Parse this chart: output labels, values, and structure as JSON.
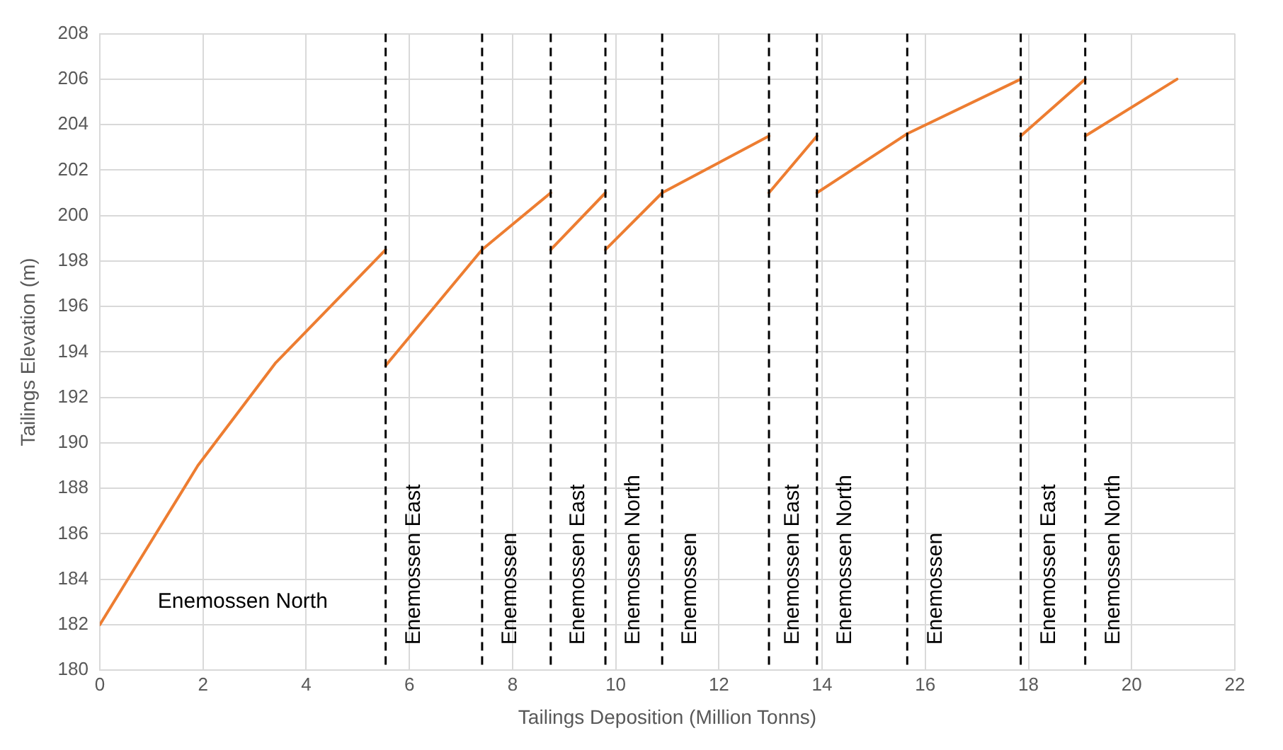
{
  "chart_data": {
    "type": "line",
    "xlabel": "Tailings Deposition (Million Tonns)",
    "ylabel": "Tailings Elevation (m)",
    "series": [
      {
        "color": "#ed7d31",
        "x": [
          0,
          1.9,
          3.4,
          5.54
        ],
        "values": [
          182,
          189,
          193.5,
          198.5
        ]
      },
      {
        "color": "#ed7d31",
        "x": [
          5.54,
          7.41,
          8.74
        ],
        "values": [
          193.4,
          198.5,
          201
        ]
      },
      {
        "color": "#ed7d31",
        "x": [
          8.74,
          9.8
        ],
        "values": [
          198.5,
          201
        ]
      },
      {
        "color": "#ed7d31",
        "x": [
          9.8,
          10.9,
          12.97
        ],
        "values": [
          198.5,
          201,
          203.5
        ]
      },
      {
        "color": "#ed7d31",
        "x": [
          12.97,
          13.9
        ],
        "values": [
          201,
          203.5
        ]
      },
      {
        "color": "#ed7d31",
        "x": [
          13.9,
          15.65,
          17.85
        ],
        "values": [
          201,
          203.6,
          206
        ]
      },
      {
        "color": "#ed7d31",
        "x": [
          17.85,
          19.1
        ],
        "values": [
          203.5,
          206
        ]
      },
      {
        "color": "#ed7d31",
        "x": [
          19.1,
          20.88
        ],
        "values": [
          203.5,
          206
        ]
      }
    ],
    "xlim": [
      0,
      22
    ],
    "xticks": [
      0,
      2,
      4,
      6,
      8,
      10,
      12,
      14,
      16,
      18,
      20,
      22
    ],
    "ylim": [
      180,
      208
    ],
    "yticks": [
      180,
      182,
      184,
      186,
      188,
      190,
      192,
      194,
      196,
      198,
      200,
      202,
      204,
      206,
      208
    ],
    "grid": true,
    "legend": false,
    "marker": "none",
    "line_style": "solid",
    "ref_lines": [
      {
        "axis": "x",
        "value": 5.54,
        "color": "#000000",
        "line_style": "dashed"
      },
      {
        "axis": "x",
        "value": 7.41,
        "color": "#000000",
        "line_style": "dashed"
      },
      {
        "axis": "x",
        "value": 8.74,
        "color": "#000000",
        "line_style": "dashed"
      },
      {
        "axis": "x",
        "value": 9.8,
        "color": "#000000",
        "line_style": "dashed"
      },
      {
        "axis": "x",
        "value": 10.9,
        "color": "#000000",
        "line_style": "dashed"
      },
      {
        "axis": "x",
        "value": 12.97,
        "color": "#000000",
        "line_style": "dashed"
      },
      {
        "axis": "x",
        "value": 13.9,
        "color": "#000000",
        "line_style": "dashed"
      },
      {
        "axis": "x",
        "value": 15.65,
        "color": "#000000",
        "line_style": "dashed"
      },
      {
        "axis": "x",
        "value": 17.85,
        "color": "#000000",
        "line_style": "dashed"
      },
      {
        "axis": "x",
        "value": 19.1,
        "color": "#000000",
        "line_style": "dashed"
      }
    ],
    "annotations": [
      "Enemossen North",
      "Enemossen East",
      "Enemossen",
      "Enemossen East",
      "Enemossen North",
      "Enemossen",
      "Enemossen East",
      "Enemossen North",
      "Enemossen",
      "Enemossen East",
      "Enemossen North"
    ]
  }
}
